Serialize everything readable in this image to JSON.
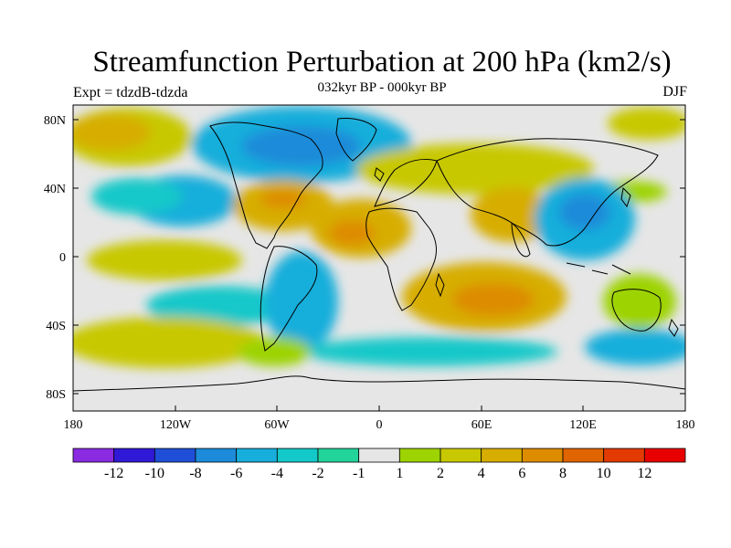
{
  "title": "Streamfunction Perturbation at 200 hPa (km2/s)",
  "subtitle": "032kyr BP - 000kyr BP",
  "expt_label": "Expt = tdzdB-tdzda",
  "season": "DJF",
  "colors": {
    "land_outline": "#000000",
    "background": "#ffffff",
    "field_neutral": "#e6e6e6"
  },
  "y_axis": {
    "labels": [
      "80N",
      "40N",
      "0",
      "40S",
      "80S"
    ],
    "values": [
      80,
      40,
      0,
      -40,
      -80
    ]
  },
  "x_axis": {
    "labels": [
      "180",
      "120W",
      "60W",
      "0",
      "60E",
      "120E",
      "180"
    ],
    "values": [
      -180,
      -120,
      -60,
      0,
      60,
      120,
      180
    ]
  },
  "colorbar": {
    "colors": [
      "#8a2be2",
      "#3019d6",
      "#1f4fd8",
      "#1c8bd9",
      "#17aedb",
      "#13c8c9",
      "#22d39a",
      "#e6e6e6",
      "#9dd300",
      "#c8c800",
      "#d7ad00",
      "#dd8c00",
      "#e06400",
      "#e23a00",
      "#e80000"
    ],
    "labels": [
      "-12",
      "-10",
      "-8",
      "-6",
      "-4",
      "-2",
      "-1",
      "1",
      "2",
      "4",
      "6",
      "8",
      "10",
      "12"
    ]
  },
  "field_features": [
    {
      "kind": "high",
      "lon": -180,
      "lat": 55,
      "value": 4
    },
    {
      "kind": "high",
      "lon": -150,
      "lat": 5,
      "value": 2
    },
    {
      "kind": "low",
      "lon": -60,
      "lat": 70,
      "value": -6
    },
    {
      "kind": "high",
      "lon": -45,
      "lat": 32,
      "value": 6
    },
    {
      "kind": "high",
      "lon": -5,
      "lat": 10,
      "value": 6
    },
    {
      "kind": "high",
      "lon": 45,
      "lat": 45,
      "value": 2
    },
    {
      "kind": "high",
      "lon": 70,
      "lat": 25,
      "value": 4
    },
    {
      "kind": "low",
      "lon": 115,
      "lat": 25,
      "value": -4
    },
    {
      "kind": "high",
      "lon": 55,
      "lat": -25,
      "value": 6
    },
    {
      "kind": "low",
      "lon": -60,
      "lat": -22,
      "value": -2
    },
    {
      "kind": "high",
      "lon": -140,
      "lat": -45,
      "value": 2
    },
    {
      "kind": "low",
      "lon": 150,
      "lat": -50,
      "value": -2
    }
  ]
}
